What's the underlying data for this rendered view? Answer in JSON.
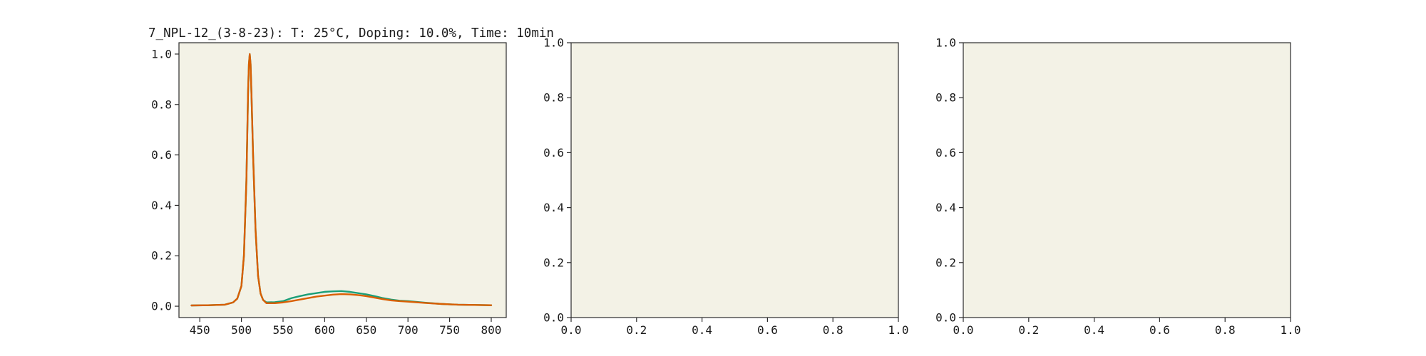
{
  "chart_data": [
    {
      "type": "line",
      "title": "7_NPL-12_(3-8-23): T: 25°C, Doping: 10.0%, Time: 10min",
      "xlim": [
        425,
        818
      ],
      "ylim": [
        -0.045,
        1.045
      ],
      "xticks": [
        450,
        500,
        550,
        600,
        650,
        700,
        750,
        800
      ],
      "yticks": [
        0.0,
        0.2,
        0.4,
        0.6,
        0.8,
        1.0
      ],
      "xtick_labels": [
        "450",
        "500",
        "550",
        "600",
        "650",
        "700",
        "750",
        "800"
      ],
      "ytick_labels": [
        "0.0",
        "0.2",
        "0.4",
        "0.6",
        "0.8",
        "1.0"
      ],
      "series": [
        {
          "color": "#1a9e77",
          "x": [
            440,
            460,
            480,
            490,
            495,
            500,
            503,
            506,
            508,
            509,
            510,
            511,
            512,
            514,
            517,
            520,
            523,
            526,
            530,
            540,
            550,
            560,
            570,
            580,
            590,
            600,
            610,
            620,
            630,
            640,
            650,
            660,
            670,
            680,
            690,
            700,
            720,
            740,
            760,
            780,
            800
          ],
          "values": [
            0.003,
            0.004,
            0.006,
            0.015,
            0.03,
            0.08,
            0.2,
            0.5,
            0.85,
            0.96,
            1.0,
            0.96,
            0.85,
            0.6,
            0.3,
            0.12,
            0.05,
            0.025,
            0.015,
            0.016,
            0.02,
            0.032,
            0.04,
            0.047,
            0.052,
            0.057,
            0.059,
            0.06,
            0.057,
            0.052,
            0.047,
            0.04,
            0.032,
            0.026,
            0.022,
            0.02,
            0.014,
            0.009,
            0.006,
            0.005,
            0.004
          ]
        },
        {
          "color": "#d95f02",
          "x": [
            440,
            460,
            480,
            490,
            495,
            500,
            503,
            506,
            508,
            509,
            510,
            511,
            512,
            514,
            517,
            520,
            523,
            526,
            530,
            540,
            550,
            560,
            570,
            580,
            590,
            600,
            610,
            620,
            630,
            640,
            650,
            660,
            670,
            680,
            690,
            700,
            720,
            740,
            760,
            780,
            800
          ],
          "values": [
            0.003,
            0.004,
            0.006,
            0.015,
            0.03,
            0.08,
            0.2,
            0.5,
            0.85,
            0.96,
            1.0,
            0.96,
            0.85,
            0.6,
            0.3,
            0.12,
            0.05,
            0.025,
            0.012,
            0.012,
            0.015,
            0.02,
            0.026,
            0.032,
            0.038,
            0.042,
            0.046,
            0.048,
            0.047,
            0.044,
            0.04,
            0.034,
            0.028,
            0.023,
            0.02,
            0.018,
            0.013,
            0.009,
            0.006,
            0.005,
            0.004
          ]
        }
      ]
    },
    {
      "type": "line",
      "title": "",
      "xlim": [
        0,
        1
      ],
      "ylim": [
        0,
        1
      ],
      "xticks": [
        0,
        0.2,
        0.4,
        0.6,
        0.8,
        1.0
      ],
      "yticks": [
        0,
        0.2,
        0.4,
        0.6,
        0.8,
        1.0
      ],
      "xtick_labels": [
        "0.0",
        "0.2",
        "0.4",
        "0.6",
        "0.8",
        "1.0"
      ],
      "ytick_labels": [
        "0.0",
        "0.2",
        "0.4",
        "0.6",
        "0.8",
        "1.0"
      ],
      "series": []
    },
    {
      "type": "line",
      "title": "",
      "xlim": [
        0,
        1
      ],
      "ylim": [
        0,
        1
      ],
      "xticks": [
        0,
        0.2,
        0.4,
        0.6,
        0.8,
        1.0
      ],
      "yticks": [
        0,
        0.2,
        0.4,
        0.6,
        0.8,
        1.0
      ],
      "xtick_labels": [
        "0.0",
        "0.2",
        "0.4",
        "0.6",
        "0.8",
        "1.0"
      ],
      "ytick_labels": [
        "0.0",
        "0.2",
        "0.4",
        "0.6",
        "0.8",
        "1.0"
      ],
      "series": []
    }
  ]
}
